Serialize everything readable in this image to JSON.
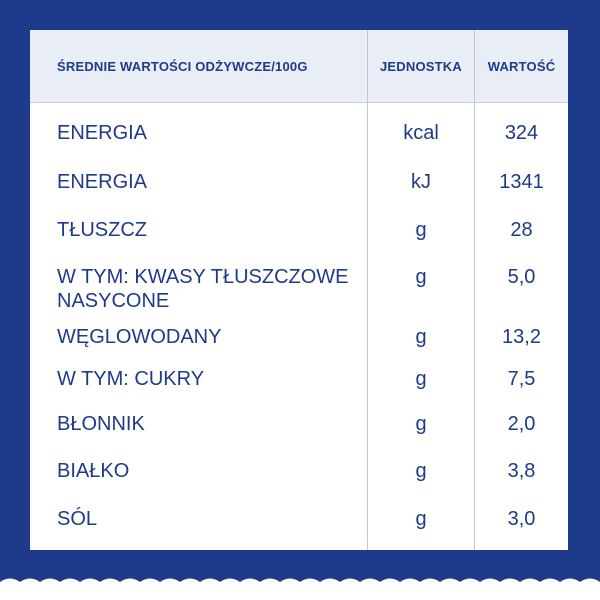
{
  "header": {
    "col1": "ŚREDNIE WARTOŚCI ODŻYWCZE/100G",
    "col2": "JEDNOSTKA",
    "col3": "WARTOŚĆ"
  },
  "rows": [
    {
      "name": "ENERGIA",
      "unit": "kcal",
      "value": "324"
    },
    {
      "name": "ENERGIA",
      "unit": "kJ",
      "value": "1341"
    },
    {
      "name": "TŁUSZCZ",
      "unit": "g",
      "value": "28"
    },
    {
      "name_line1": "W TYM: KWASY TŁUSZCZOWE",
      "name_line2": "NASYCONE",
      "unit": "g",
      "value": "5,0"
    },
    {
      "name": "WĘGLOWODANY",
      "unit": "g",
      "value": "13,2"
    },
    {
      "name": "W TYM: CUKRY",
      "unit": "g",
      "value": "7,5"
    },
    {
      "name": "BŁONNIK",
      "unit": "g",
      "value": "2,0"
    },
    {
      "name": "BIAŁKO",
      "unit": "g",
      "value": "3,8"
    },
    {
      "name": "SÓL",
      "unit": "g",
      "value": "3,0"
    }
  ],
  "colors": {
    "background": "#1e3a8a",
    "text": "#1e3a8a",
    "header_bg": "#e9eef6",
    "panel": "#ffffff"
  }
}
